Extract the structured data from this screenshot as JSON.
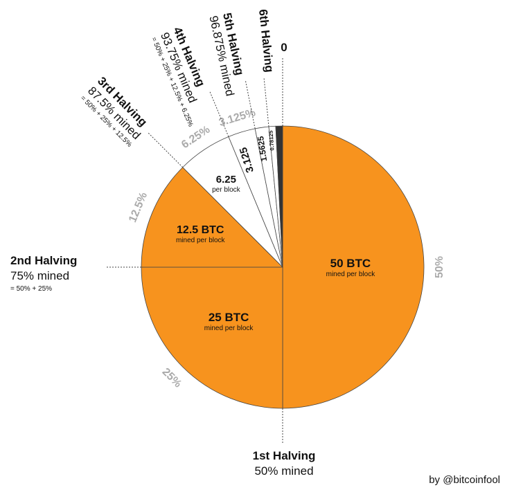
{
  "chart_data": {
    "type": "pie",
    "categories": [
      "50 BTC",
      "25 BTC",
      "12.5 BTC",
      "6.25",
      "3.125",
      "1.5625",
      "0.78125",
      null
    ],
    "sublabels": [
      "mined per block",
      "mined per block",
      "mined per block",
      "per block",
      null,
      null,
      null,
      null
    ],
    "values": [
      50,
      25,
      12.5,
      6.25,
      3.125,
      1.5625,
      0.78125,
      0.78125
    ],
    "value_labels": [
      "50%",
      "25%",
      "12.5%",
      "6.25%",
      "3.125%",
      null,
      null,
      null
    ],
    "colors": [
      "#f7931e",
      "#f7931e",
      "#f7931e",
      "#ffffff",
      "#ffffff",
      "#ffffff",
      "#ffffff",
      "#333333"
    ],
    "annotations": [
      {
        "title": "1st Halving",
        "text": "50% mined"
      },
      {
        "title": "2nd Halving",
        "text": "75% mined",
        "formula": "= 50% + 25%"
      },
      {
        "title": "3rd Halving",
        "text": "87.5% mined",
        "formula": "= 50% + 25% + 12.5%"
      },
      {
        "title": "4th Halving",
        "text": "93.75% mined",
        "formula": "= 50% + 25% + 12.5% + 6.25%"
      },
      {
        "title": "5th Halving",
        "text": "96.875% mined"
      },
      {
        "title": "6th Halving"
      },
      {
        "title": "0"
      }
    ],
    "credit": "by @bitcoinfool"
  }
}
